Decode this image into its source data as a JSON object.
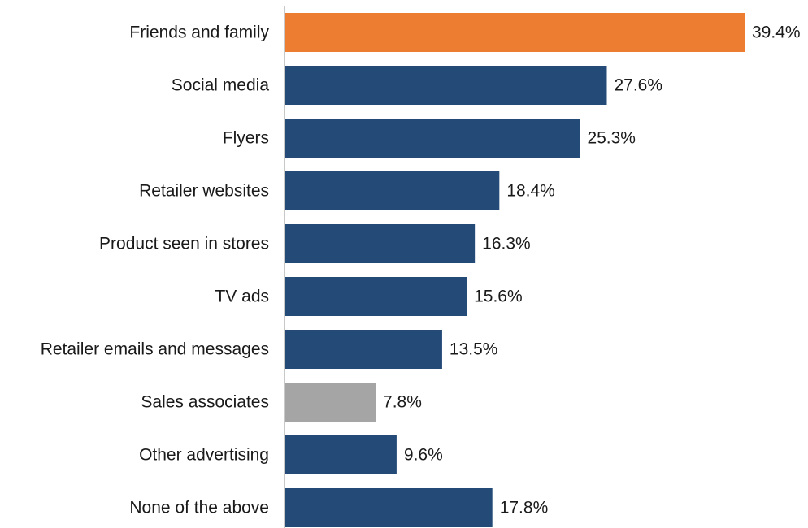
{
  "chart_data": {
    "type": "bar",
    "orientation": "horizontal",
    "title": "",
    "xlabel": "",
    "ylabel": "",
    "xlim": [
      0,
      39.4
    ],
    "grid": false,
    "legend": "none",
    "value_suffix": "%",
    "categories": [
      "Friends and family",
      "Social media",
      "Flyers",
      "Retailer websites",
      "Product seen in stores",
      "TV ads",
      "Retailer emails and messages",
      "Sales associates",
      "Other advertising",
      "None of the above"
    ],
    "values": [
      39.4,
      27.6,
      25.3,
      18.4,
      16.3,
      15.6,
      13.5,
      7.8,
      9.6,
      17.8
    ],
    "value_labels": [
      "39.4%",
      "27.6%",
      "25.3%",
      "18.4%",
      "16.3%",
      "15.6%",
      "13.5%",
      "7.8%",
      "9.6%",
      "17.8%"
    ],
    "bar_colors": [
      "#ED7D31",
      "#244B77",
      "#244B77",
      "#244B77",
      "#244B77",
      "#244B77",
      "#244B77",
      "#A5A5A5",
      "#244B77",
      "#244B77"
    ]
  }
}
